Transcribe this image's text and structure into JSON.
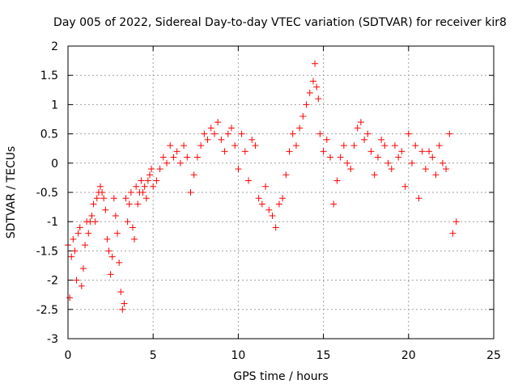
{
  "chart_data": {
    "type": "scatter",
    "title": "Day 005 of 2022, Sidereal Day-to-day VTEC variation (SDTVAR) for receiver kir8",
    "xlabel": "GPS time / hours",
    "ylabel": "SDTVAR / TECUs",
    "xlim": [
      0,
      25
    ],
    "ylim": [
      -3,
      2
    ],
    "xticks": [
      0,
      5,
      10,
      15,
      20,
      25
    ],
    "yticks": [
      -3,
      -2.5,
      -2,
      -1.5,
      -1,
      -0.5,
      0,
      0.5,
      1,
      1.5,
      2
    ],
    "grid": true,
    "marker": "+",
    "color": "#ff0000",
    "series": [
      {
        "name": "SDTVAR",
        "x": [
          0.0,
          0.1,
          0.2,
          0.3,
          0.4,
          0.5,
          0.6,
          0.7,
          0.8,
          0.9,
          1.0,
          1.1,
          1.2,
          1.3,
          1.4,
          1.5,
          1.6,
          1.7,
          1.8,
          1.9,
          2.0,
          2.1,
          2.2,
          2.3,
          2.4,
          2.5,
          2.6,
          2.7,
          2.8,
          2.9,
          3.0,
          3.1,
          3.2,
          3.3,
          3.4,
          3.5,
          3.6,
          3.7,
          3.8,
          3.9,
          4.0,
          4.1,
          4.2,
          4.3,
          4.4,
          4.5,
          4.6,
          4.7,
          4.8,
          4.9,
          5.0,
          5.2,
          5.4,
          5.6,
          5.8,
          6.0,
          6.2,
          6.4,
          6.6,
          6.8,
          7.0,
          7.2,
          7.4,
          7.6,
          7.8,
          8.0,
          8.2,
          8.4,
          8.6,
          8.8,
          9.0,
          9.2,
          9.4,
          9.6,
          9.8,
          10.0,
          10.2,
          10.4,
          10.6,
          10.8,
          11.0,
          11.2,
          11.4,
          11.6,
          11.8,
          12.0,
          12.2,
          12.4,
          12.6,
          12.8,
          13.0,
          13.2,
          13.4,
          13.6,
          13.8,
          14.0,
          14.2,
          14.4,
          14.5,
          14.6,
          14.7,
          14.8,
          15.0,
          15.2,
          15.4,
          15.6,
          15.8,
          16.0,
          16.2,
          16.4,
          16.6,
          16.8,
          17.0,
          17.2,
          17.4,
          17.6,
          17.8,
          18.0,
          18.2,
          18.4,
          18.6,
          18.8,
          19.0,
          19.2,
          19.4,
          19.6,
          19.8,
          20.0,
          20.2,
          20.4,
          20.6,
          20.8,
          21.0,
          21.2,
          21.4,
          21.6,
          21.8,
          22.0,
          22.2,
          22.4,
          22.6,
          22.8
        ],
        "y": [
          -1.4,
          -2.3,
          -1.6,
          -1.3,
          -1.5,
          -2.0,
          -1.2,
          -1.1,
          -2.1,
          -1.8,
          -1.4,
          -1.0,
          -1.2,
          -1.0,
          -0.9,
          -0.7,
          -1.0,
          -0.6,
          -0.5,
          -0.4,
          -0.5,
          -0.6,
          -0.8,
          -1.3,
          -1.5,
          -1.9,
          -1.6,
          -0.6,
          -0.9,
          -1.2,
          -1.7,
          -2.2,
          -2.5,
          -2.4,
          -0.6,
          -1.0,
          -0.7,
          -0.5,
          -1.1,
          -1.3,
          -0.4,
          -0.7,
          -0.5,
          -0.3,
          -0.5,
          -0.4,
          -0.6,
          -0.3,
          -0.2,
          -0.1,
          -0.4,
          -0.3,
          -0.1,
          0.1,
          0.0,
          0.3,
          0.1,
          0.2,
          0.0,
          0.3,
          0.1,
          -0.5,
          -0.2,
          0.1,
          0.3,
          0.5,
          0.4,
          0.6,
          0.5,
          0.7,
          0.4,
          0.2,
          0.5,
          0.6,
          0.3,
          -0.1,
          0.5,
          0.2,
          -0.3,
          0.4,
          0.3,
          -0.6,
          -0.7,
          -0.4,
          -0.8,
          -0.9,
          -1.1,
          -0.7,
          -0.6,
          -0.2,
          0.2,
          0.5,
          0.3,
          0.6,
          0.8,
          1.0,
          1.2,
          1.4,
          1.7,
          1.3,
          1.1,
          0.5,
          0.2,
          0.4,
          0.1,
          -0.7,
          -0.3,
          0.1,
          0.3,
          0.0,
          -0.1,
          0.3,
          0.6,
          0.7,
          0.4,
          0.5,
          0.2,
          -0.2,
          0.1,
          0.4,
          0.3,
          0.0,
          -0.1,
          0.3,
          0.1,
          0.2,
          -0.4,
          0.5,
          0.0,
          0.3,
          -0.6,
          0.2,
          -0.1,
          0.2,
          0.1,
          -0.2,
          0.3,
          0.0,
          -0.1,
          0.5,
          -1.2,
          -1.0
        ]
      }
    ]
  }
}
